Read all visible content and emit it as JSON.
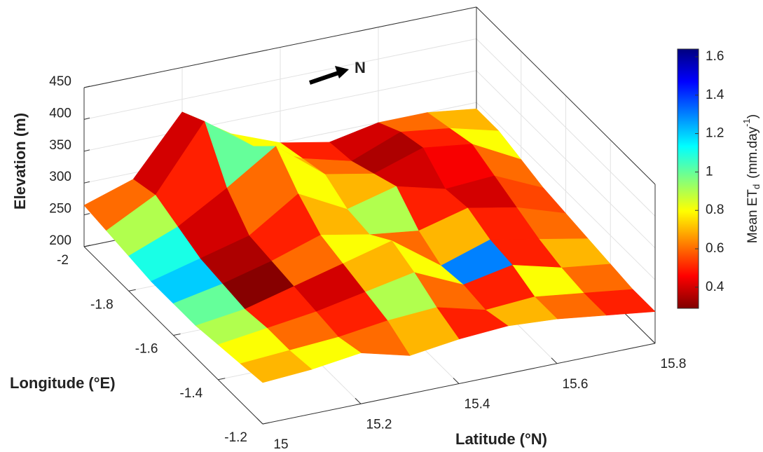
{
  "chart_data": {
    "type": "surface",
    "annotation": "N",
    "xlabel": "Longitude (°E)",
    "ylabel": "Latitude (°N)",
    "zlabel": "Elevation (m)",
    "colorbar_label": [
      "Mean ET",
      "d",
      "(mm.day",
      "-1",
      ")"
    ],
    "xlim": [
      -2,
      -1.2
    ],
    "xticks": [
      -2,
      -1.8,
      -1.6,
      -1.4,
      -1.2
    ],
    "ylim": [
      15,
      15.8
    ],
    "yticks": [
      15,
      15.2,
      15.4,
      15.6,
      15.8
    ],
    "zlim": [
      200,
      450
    ],
    "zticks": [
      200,
      250,
      300,
      350,
      400,
      450
    ],
    "clim": [
      0.29,
      1.64
    ],
    "cticks": [
      0.4,
      0.6,
      0.8,
      1,
      1.2,
      1.4,
      1.6
    ],
    "colormap": "jet",
    "colormap_reversed": true,
    "grid": true,
    "surface": {
      "x": [
        -2,
        -1.9,
        -1.8,
        -1.7,
        -1.6,
        -1.5,
        -1.4,
        -1.3,
        -1.2
      ],
      "y": [
        15,
        15.1,
        15.2,
        15.3,
        15.4,
        15.5,
        15.6,
        15.7,
        15.8
      ],
      "z": [
        [
          265,
          290,
          380,
          330,
          300,
          285,
          300,
          300,
          290
        ],
        [
          260,
          300,
          400,
          345,
          310,
          290,
          320,
          310,
          290
        ],
        [
          255,
          285,
          330,
          380,
          320,
          305,
          330,
          320,
          280
        ],
        [
          250,
          270,
          290,
          340,
          300,
          320,
          300,
          305,
          270
        ],
        [
          250,
          265,
          285,
          310,
          295,
          285,
          305,
          290,
          265
        ],
        [
          250,
          260,
          280,
          300,
          320,
          265,
          290,
          275,
          260
        ],
        [
          255,
          265,
          275,
          290,
          305,
          270,
          285,
          265,
          255
        ],
        [
          260,
          265,
          270,
          280,
          285,
          265,
          270,
          260,
          250
        ],
        [
          265,
          270,
          280,
          260,
          270,
          275,
          270,
          260,
          250
        ]
      ],
      "color_values": [
        [
          0.6,
          0.4,
          0.9,
          0.8,
          0.5,
          0.4,
          0.6,
          0.7
        ],
        [
          0.9,
          0.5,
          1.0,
          0.7,
          0.6,
          0.35,
          0.5,
          0.8
        ],
        [
          1.1,
          0.4,
          0.6,
          0.8,
          0.7,
          0.4,
          0.45,
          0.6
        ],
        [
          1.2,
          0.35,
          0.5,
          0.7,
          0.9,
          0.5,
          0.4,
          0.55
        ],
        [
          1.0,
          0.3,
          0.6,
          0.8,
          0.6,
          0.7,
          0.5,
          0.6
        ],
        [
          0.9,
          0.5,
          0.4,
          0.7,
          0.8,
          1.3,
          0.5,
          0.7
        ],
        [
          0.8,
          0.6,
          0.5,
          0.9,
          0.6,
          0.5,
          0.8,
          0.6
        ],
        [
          0.7,
          0.8,
          0.6,
          0.7,
          0.5,
          0.7,
          0.6,
          0.5
        ]
      ]
    }
  }
}
